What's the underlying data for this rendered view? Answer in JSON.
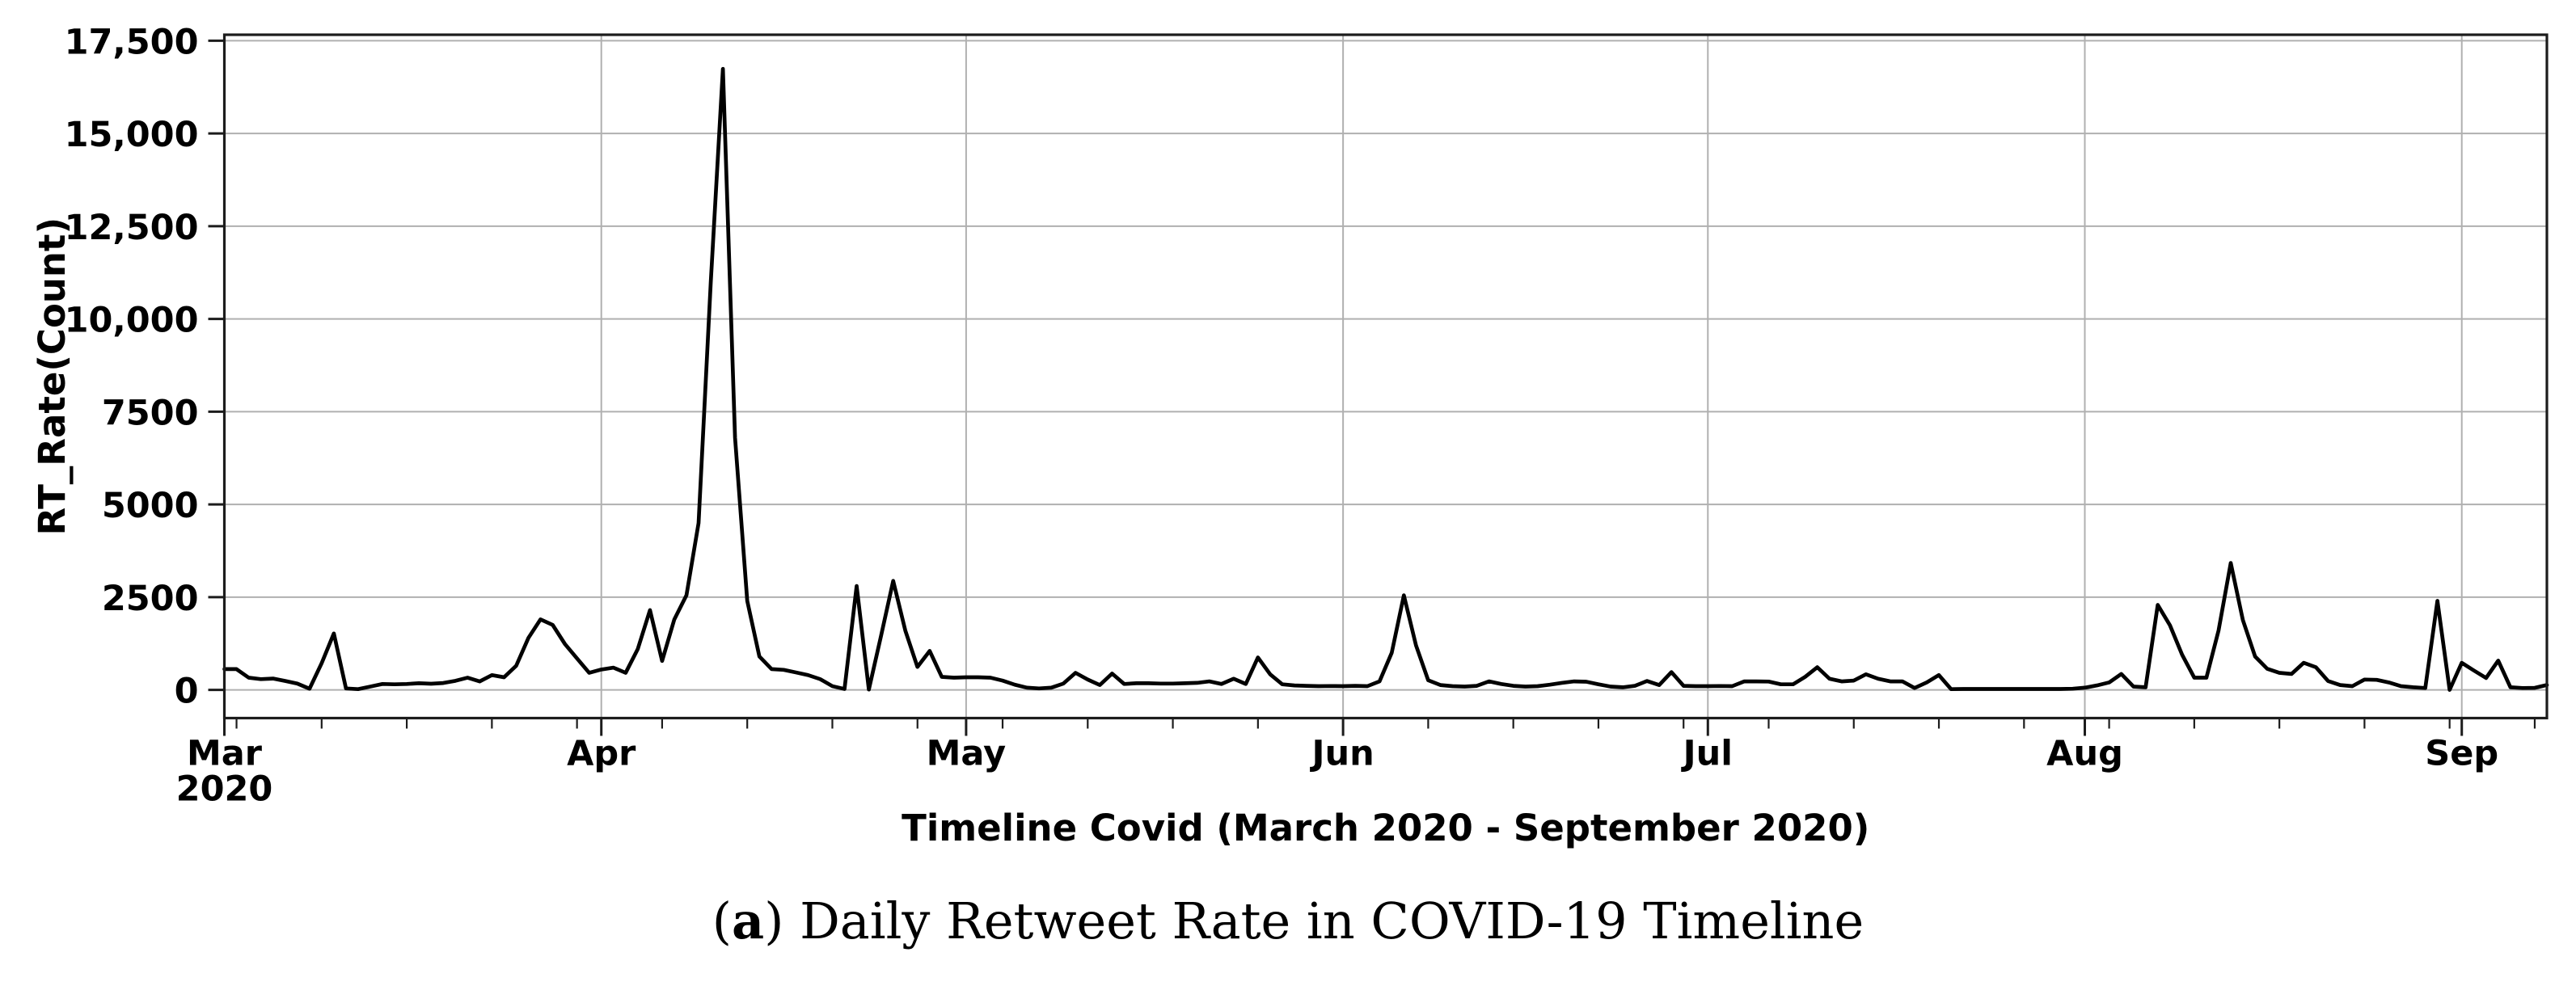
{
  "figure": {
    "background_color": "#ffffff",
    "caption": {
      "open": "(",
      "letter": "a",
      "close": ")",
      "text": " Daily Retweet Rate in COVID-19 Timeline"
    }
  },
  "chart_data": {
    "type": "line",
    "title": "",
    "xlabel": "Timeline Covid (March 2020 - September 2020)",
    "ylabel": "RT_Rate(Count)",
    "x_start_date": "2020-03-01",
    "x_end_date": "2020-09-08",
    "x_frequency": "daily",
    "x_major_ticks": [
      {
        "day": 0,
        "label": "Mar",
        "sublabel": "2020"
      },
      {
        "day": 31,
        "label": "Apr"
      },
      {
        "day": 61,
        "label": "May"
      },
      {
        "day": 92,
        "label": "Jun"
      },
      {
        "day": 122,
        "label": "Jul"
      },
      {
        "day": 153,
        "label": "Aug"
      },
      {
        "day": 184,
        "label": "Sep"
      }
    ],
    "x_minor_tick_start_day": 1,
    "x_minor_tick_interval_days": 7,
    "y_ticks": [
      0,
      2500,
      5000,
      7500,
      10000,
      12500,
      15000,
      17500
    ],
    "y_tick_labels": [
      "0",
      "2500",
      "5000",
      "7500",
      "10,000",
      "12,500",
      "15,000",
      "17,500"
    ],
    "ylim": [
      -760,
      17660
    ],
    "grid": true,
    "legend": "none",
    "colors": {
      "line": "#000000",
      "grid": "#b0b0b0",
      "spine": "#1c1c1c",
      "text": "#000000"
    },
    "peak_value": 16740,
    "peak_date": "2020-04-11",
    "series": [
      {
        "name": "RT_Rate",
        "values": [
          560,
          560,
          330,
          290,
          305,
          240,
          170,
          30,
          720,
          1520,
          40,
          20,
          90,
          160,
          150,
          160,
          180,
          165,
          185,
          245,
          330,
          230,
          400,
          340,
          650,
          1400,
          1900,
          1750,
          1240,
          850,
          460,
          550,
          600,
          460,
          1100,
          2150,
          780,
          1900,
          2550,
          4500,
          11000,
          16740,
          6800,
          2400,
          900,
          560,
          540,
          470,
          400,
          290,
          100,
          25,
          2800,
          10,
          1450,
          2940,
          1600,
          620,
          1050,
          350,
          330,
          340,
          340,
          330,
          250,
          140,
          60,
          40,
          60,
          170,
          460,
          280,
          130,
          440,
          160,
          180,
          180,
          170,
          170,
          180,
          190,
          230,
          160,
          300,
          160,
          875,
          420,
          150,
          120,
          110,
          100,
          105,
          100,
          110,
          100,
          230,
          1000,
          2550,
          1200,
          260,
          130,
          100,
          90,
          110,
          230,
          160,
          110,
          90,
          100,
          140,
          190,
          230,
          220,
          150,
          90,
          70,
          110,
          240,
          130,
          480,
          110,
          100,
          100,
          105,
          100,
          230,
          230,
          225,
          150,
          150,
          350,
          610,
          300,
          230,
          250,
          420,
          300,
          230,
          230,
          50,
          200,
          400,
          20,
          25,
          25,
          25,
          25,
          25,
          25,
          25,
          25,
          25,
          30,
          60,
          120,
          200,
          430,
          90,
          70,
          2290,
          1740,
          950,
          330,
          330,
          1600,
          3420,
          1880,
          900,
          570,
          460,
          430,
          730,
          610,
          240,
          130,
          100,
          280,
          270,
          200,
          100,
          70,
          50,
          2400,
          0,
          730,
          520,
          320,
          790,
          70,
          50,
          55,
          130
        ]
      }
    ]
  }
}
